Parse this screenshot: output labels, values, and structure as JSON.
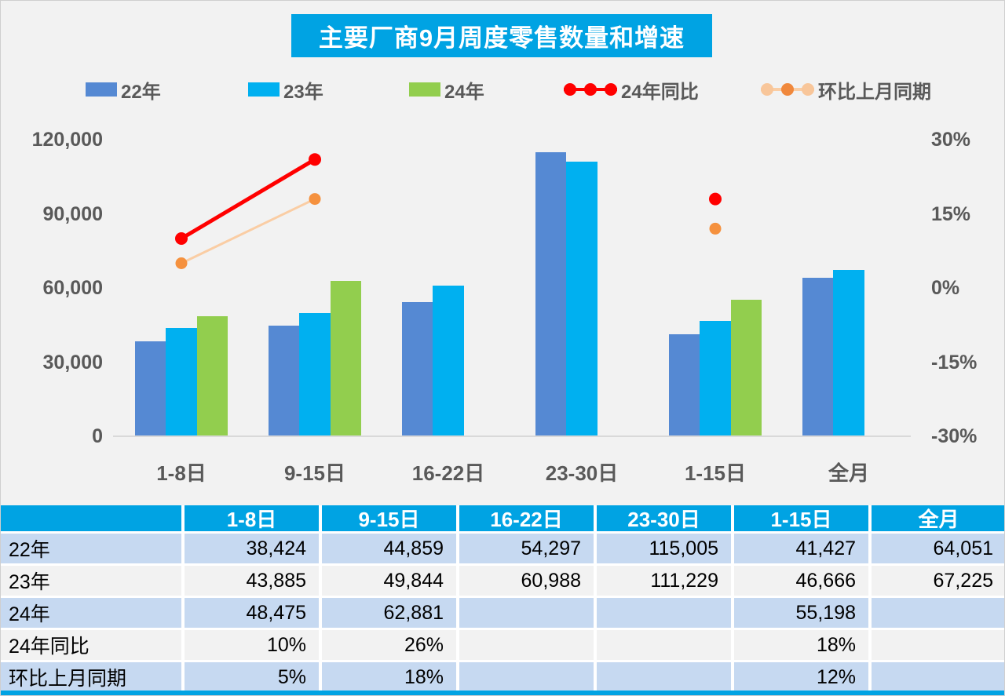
{
  "title": "主要厂商9月周度零售数量和增速",
  "colors": {
    "title_bg": "#00A3E3",
    "header_bg": "#00A3E3",
    "bar_22": "#5589D3",
    "bar_23": "#00B0F0",
    "bar_24": "#92CE4E",
    "line_yoy": "#FF0000",
    "line_mom": "#FACDA4",
    "marker_mom": "#F5913E",
    "legend_mom_outer": "#F8C69A",
    "legend_mom_mid": "#F0883C",
    "axis_text": "#595959",
    "row_blue": "#C6D9F1",
    "row_gray": "#F2F2F2",
    "baseline": "#D9D9D9"
  },
  "chart_data": {
    "type": "bar",
    "title": "主要厂商9月周度零售数量和增速",
    "categories": [
      "1-8日",
      "9-15日",
      "16-22日",
      "23-30日",
      "1-15日",
      "全月"
    ],
    "series": [
      {
        "name": "22年",
        "kind": "bar",
        "color": "#5589D3",
        "values": [
          38424,
          44859,
          54297,
          115005,
          41427,
          64051
        ]
      },
      {
        "name": "23年",
        "kind": "bar",
        "color": "#00B0F0",
        "values": [
          43885,
          49844,
          60988,
          111229,
          46666,
          67225
        ]
      },
      {
        "name": "24年",
        "kind": "bar",
        "color": "#92CE4E",
        "values": [
          48475,
          62881,
          null,
          null,
          55198,
          null
        ]
      },
      {
        "name": "24年同比",
        "kind": "line",
        "color": "#FF0000",
        "marker": "#FF0000",
        "values_pct": [
          10,
          26,
          null,
          null,
          18,
          null
        ]
      },
      {
        "name": "环比上月同期",
        "kind": "line",
        "color": "#FACDA4",
        "marker": "#F5913E",
        "values_pct": [
          5,
          18,
          null,
          null,
          12,
          null
        ]
      }
    ],
    "left_axis": {
      "label": "",
      "min": 0,
      "max": 120000,
      "ticks": [
        "0",
        "30,000",
        "60,000",
        "90,000",
        "120,000"
      ]
    },
    "right_axis": {
      "label": "",
      "min": -30,
      "max": 30,
      "ticks": [
        "-30%",
        "-15%",
        "0%",
        "15%",
        "30%"
      ]
    },
    "grid": "off",
    "legend_position": "top"
  },
  "table": {
    "header": [
      "",
      "1-8日",
      "9-15日",
      "16-22日",
      "23-30日",
      "1-15日",
      "全月"
    ],
    "rows": [
      {
        "label": "22年",
        "values": [
          "38,424",
          "44,859",
          "54,297",
          "115,005",
          "41,427",
          "64,051"
        ]
      },
      {
        "label": "23年",
        "values": [
          "43,885",
          "49,844",
          "60,988",
          "111,229",
          "46,666",
          "67,225"
        ]
      },
      {
        "label": "24年",
        "values": [
          "48,475",
          "62,881",
          "",
          "",
          "55,198",
          ""
        ]
      },
      {
        "label": "24年同比",
        "values": [
          "10%",
          "26%",
          "",
          "",
          "18%",
          ""
        ]
      },
      {
        "label": "环比上月同期",
        "values": [
          "5%",
          "18%",
          "",
          "",
          "12%",
          ""
        ]
      }
    ]
  }
}
